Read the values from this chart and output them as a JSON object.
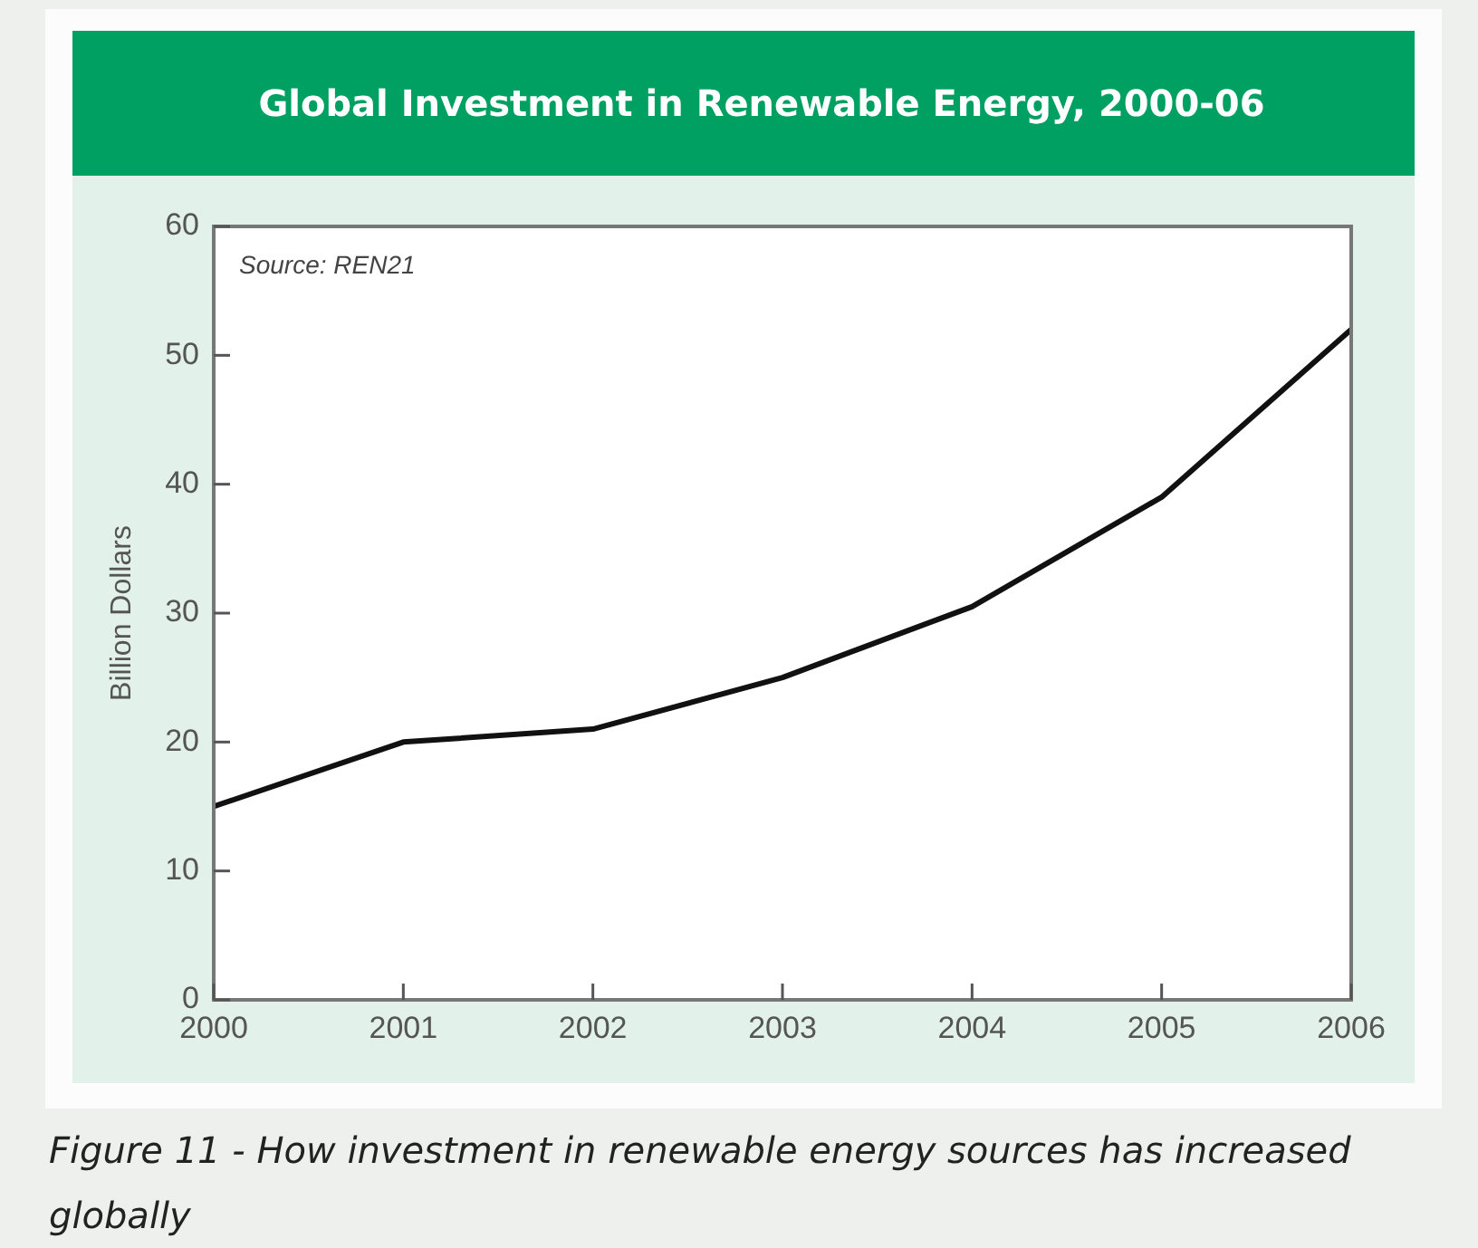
{
  "chart_data": {
    "type": "line",
    "title": "Global Investment in Renewable Energy, 2000-06",
    "ylabel": "Billion Dollars",
    "annotations": [
      "Source: REN21",
      "Figure 11 - How investment in renewable energy sources has increased globally"
    ],
    "x": [
      2000,
      2001,
      2002,
      2003,
      2004,
      2005,
      2006
    ],
    "values": [
      15,
      20,
      21,
      25,
      30.5,
      39,
      52
    ],
    "color": "#111111",
    "xlim": [
      2000,
      2006
    ],
    "xticks": [
      2000,
      2001,
      2002,
      2003,
      2004,
      2005,
      2006
    ],
    "ylim": [
      0,
      60
    ],
    "yticks": [
      0,
      10,
      20,
      30,
      40,
      50,
      60
    ],
    "marker": "none",
    "line_style": "solid"
  }
}
